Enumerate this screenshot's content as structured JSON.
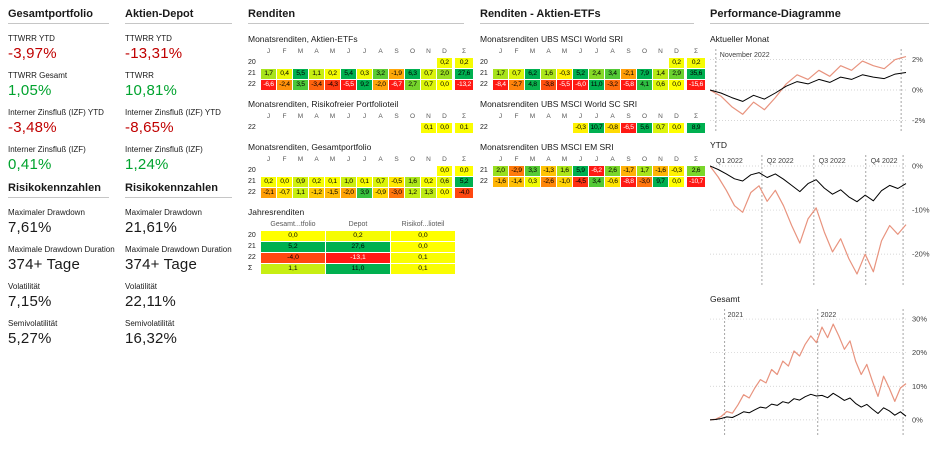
{
  "colors": {
    "negative_value": "#c00000",
    "positive_value": "#00a32e",
    "heat_green": "#00b050",
    "heat_yellow": "#ffff00",
    "heat_red": "#ff1914",
    "depot_series": "#e8937e",
    "portfolio_series": "#000000"
  },
  "panels": {
    "gesamtportfolio": {
      "title": "Gesamtportfolio",
      "metrics": [
        {
          "label": "TTWRR YTD",
          "value": "-3,97%",
          "tone": "negative"
        },
        {
          "label": "TTWRR Gesamt",
          "value": "1,05%",
          "tone": "positive"
        },
        {
          "label": "Interner Zinsfluß (IZF) YTD",
          "value": "-3,48%",
          "tone": "negative"
        },
        {
          "label": "Interner Zinsfluß (IZF)",
          "value": "0,41%",
          "tone": "positive"
        }
      ],
      "risk": {
        "title": "Risikokennzahlen",
        "metrics": [
          {
            "label": "Maximaler Drawdown",
            "value": "7,61%"
          },
          {
            "label": "Maximale Drawdown Duration",
            "value": "374+ Tage"
          },
          {
            "label": "Volatilität",
            "value": "7,15%"
          },
          {
            "label": "Semivolatilität",
            "value": "5,27%"
          }
        ]
      }
    },
    "aktien_depot": {
      "title": "Aktien-Depot",
      "metrics": [
        {
          "label": "TTWRR YTD",
          "value": "-13,31%",
          "tone": "negative"
        },
        {
          "label": "TTWRR",
          "value": "10,81%",
          "tone": "positive"
        },
        {
          "label": "Interner Zinsfluß (IZF) YTD",
          "value": "-8,65%",
          "tone": "negative"
        },
        {
          "label": "Interner Zinsfluß (IZF)",
          "value": "1,24%",
          "tone": "positive"
        }
      ],
      "risk": {
        "title": "Risikokennzahlen",
        "metrics": [
          {
            "label": "Maximaler Drawdown",
            "value": "21,61%"
          },
          {
            "label": "Maximale Drawdown Duration",
            "value": "374+ Tage"
          },
          {
            "label": "Volatilität",
            "value": "22,11%"
          },
          {
            "label": "Semivolatilität",
            "value": "16,32%"
          }
        ]
      }
    },
    "renditen": {
      "title": "Renditen",
      "month_headers": [
        "J",
        "F",
        "M",
        "A",
        "M",
        "J",
        "J",
        "A",
        "S",
        "O",
        "N",
        "D",
        "Σ"
      ],
      "tables": [
        {
          "title": "Monatsrenditen, Aktien-ETFs",
          "rows": [
            {
              "year": "20",
              "months": [
                null,
                null,
                null,
                null,
                null,
                null,
                null,
                null,
                null,
                null,
                null,
                0.2
              ],
              "sum": 0.2
            },
            {
              "year": "21",
              "months": [
                1.7,
                0.4,
                5.5,
                1.1,
                0.2,
                5.4,
                0.3,
                3.2,
                -1.9,
                6.3,
                0.7,
                2.0
              ],
              "sum": 27.6
            },
            {
              "year": "22",
              "months": [
                -6.6,
                -2.4,
                3.5,
                -3.4,
                -4.3,
                -5.5,
                9.2,
                -2.0,
                -6.7,
                2.7,
                0.7,
                0.0
              ],
              "sum": -13.2
            }
          ]
        },
        {
          "title": "Monatsrenditen, Risikofreier Portfolioteil",
          "rows": [
            {
              "year": "22",
              "months": [
                null,
                null,
                null,
                null,
                null,
                null,
                null,
                null,
                null,
                null,
                0.1,
                0.0
              ],
              "sum": 0.1
            }
          ]
        },
        {
          "title": "Monatsrenditen, Gesamtportfolio",
          "rows": [
            {
              "year": "20",
              "months": [
                null,
                null,
                null,
                null,
                null,
                null,
                null,
                null,
                null,
                null,
                null,
                0.0
              ],
              "sum": 0.0
            },
            {
              "year": "21",
              "months": [
                0.2,
                0.0,
                0.9,
                0.2,
                0.1,
                1.0,
                0.1,
                0.7,
                -0.5,
                1.6,
                0.2,
                0.6
              ],
              "sum": 5.2
            },
            {
              "year": "22",
              "months": [
                -2.1,
                -0.7,
                1.1,
                -1.2,
                -1.5,
                -2.0,
                3.9,
                -0.9,
                -3.0,
                1.2,
                1.3,
                0.0
              ],
              "sum": -4.0
            }
          ]
        }
      ],
      "jahresrenditen": {
        "title": "Jahresrenditen",
        "columns": [
          "Gesamt...tfolio",
          "Depot",
          "Risikof...lioteil"
        ],
        "rows": [
          {
            "year": "20",
            "values": [
              0.0,
              0.2,
              0.0
            ]
          },
          {
            "year": "21",
            "values": [
              5.2,
              27.6,
              0.0
            ]
          },
          {
            "year": "22",
            "values": [
              -4.0,
              -13.1,
              0.1
            ]
          },
          {
            "year": "Σ",
            "values": [
              1.1,
              11.0,
              0.1
            ]
          }
        ]
      }
    },
    "renditen_etfs": {
      "title": "Renditen - Aktien-ETFs",
      "tables": [
        {
          "title": "Monatsrenditen UBS MSCI World SRI",
          "rows": [
            {
              "year": "20",
              "months": [
                null,
                null,
                null,
                null,
                null,
                null,
                null,
                null,
                null,
                null,
                null,
                0.2
              ],
              "sum": 0.2
            },
            {
              "year": "21",
              "months": [
                1.7,
                0.7,
                6.2,
                1.6,
                -0.3,
                5.2,
                2.4,
                3.4,
                -2.1,
                7.9,
                1.4,
                2.9
              ],
              "sum": 35.6
            },
            {
              "year": "22",
              "months": [
                -8.4,
                -2.7,
                4.8,
                -3.8,
                -5.5,
                -6.0,
                11.0,
                -3.2,
                -5.8,
                4.1,
                0.6,
                0.0
              ],
              "sum": -15.6
            }
          ]
        },
        {
          "title": "Monatsrenditen UBS MSCI World SC SRI",
          "rows": [
            {
              "year": "22",
              "months": [
                null,
                null,
                null,
                null,
                null,
                -0.3,
                10.7,
                -0.8,
                -6.5,
                5.6,
                0.7,
                0.0
              ],
              "sum": 8.9
            }
          ]
        },
        {
          "title": "Monatsrenditen UBS MSCI EM SRI",
          "rows": [
            {
              "year": "21",
              "months": [
                2.0,
                -2.9,
                3.3,
                -1.3,
                1.6,
                5.9,
                -6.2,
                2.6,
                -1.7,
                1.7,
                -1.6,
                -0.3
              ],
              "sum": 2.6
            },
            {
              "year": "22",
              "months": [
                -1.6,
                -1.4,
                0.3,
                -2.6,
                -1.0,
                -4.5,
                3.4,
                -0.6,
                -8.8,
                -3.0,
                9.7,
                0.0
              ],
              "sum": -10.7
            }
          ]
        }
      ]
    },
    "performance": {
      "title": "Performance-Diagramme"
    }
  },
  "chart_data": [
    {
      "type": "line",
      "title": "Aktueller Monat",
      "y_ticks": [
        2,
        0,
        -2
      ],
      "y_range": [
        -2.7,
        2.7
      ],
      "x_lines": [
        0.03,
        0.975
      ],
      "x_labels": [
        {
          "pos": 0.05,
          "text": "November 2022"
        }
      ],
      "series": [
        {
          "name": "Aktien-Depot",
          "color": "#e8937e",
          "values": [
            0,
            -0.4,
            -1.1,
            -1.6,
            -0.8,
            -1.3,
            -0.5,
            0.4,
            1.0,
            0.7,
            1.3,
            0.9,
            1.6,
            1.3,
            1.9,
            1.6,
            1.4,
            2.0,
            2.2
          ]
        },
        {
          "name": "Gesamtportfolio",
          "color": "#000000",
          "values": [
            0,
            -0.2,
            -0.5,
            -0.75,
            -0.35,
            -0.6,
            -0.2,
            0.25,
            0.55,
            0.4,
            0.7,
            0.5,
            0.85,
            0.7,
            1.0,
            0.85,
            0.75,
            1.05,
            1.15
          ]
        }
      ]
    },
    {
      "type": "line",
      "title": "YTD",
      "y_ticks": [
        0,
        -10,
        -20
      ],
      "y_range": [
        -27,
        2.5
      ],
      "x_lines": [
        0.265,
        0.53,
        0.795,
        0.985
      ],
      "x_labels": [
        {
          "pos": 0.03,
          "text": "Q1 2022"
        },
        {
          "pos": 0.29,
          "text": "Q2 2022"
        },
        {
          "pos": 0.555,
          "text": "Q3 2022"
        },
        {
          "pos": 0.82,
          "text": "Q4 2022"
        }
      ],
      "series": [
        {
          "name": "Aktien-Depot",
          "color": "#e8937e",
          "values": [
            0,
            -2.5,
            -5.5,
            -9,
            -10.5,
            -6,
            -4.5,
            -8,
            -5.5,
            -9,
            -13.5,
            -17.5,
            -12,
            -9.5,
            -15,
            -19.5,
            -16.5,
            -21,
            -24.5,
            -20,
            -24,
            -17,
            -13.5,
            -15.5,
            -13.3
          ]
        },
        {
          "name": "Gesamtportfolio",
          "color": "#000000",
          "values": [
            0,
            -0.8,
            -1.8,
            -2.9,
            -3.4,
            -2,
            -1.5,
            -2.6,
            -1.8,
            -3,
            -4.4,
            -5.8,
            -4,
            -3.1,
            -5,
            -6.4,
            -5.4,
            -7,
            -8.1,
            -6.6,
            -7.9,
            -5.6,
            -4.4,
            -5.1,
            -4
          ]
        }
      ]
    },
    {
      "type": "line",
      "title": "Gesamt",
      "y_ticks": [
        30,
        20,
        10,
        0
      ],
      "y_range": [
        -4.5,
        33
      ],
      "x_lines": [
        0.075,
        0.55,
        0.985
      ],
      "x_labels": [
        {
          "pos": 0.09,
          "text": "2021"
        },
        {
          "pos": 0.565,
          "text": "2022"
        }
      ],
      "series": [
        {
          "name": "Aktien-Depot",
          "color": "#e8937e",
          "values": [
            0,
            0.2,
            1,
            2.5,
            2,
            4.5,
            7.5,
            6.5,
            9.5,
            12,
            11,
            15,
            13.5,
            17.5,
            16,
            20.5,
            19,
            22.5,
            25,
            23,
            27.6,
            24.5,
            28.5,
            25,
            21,
            23.5,
            17.5,
            13.5,
            16.5,
            11.5,
            7,
            13,
            9.5,
            5.5,
            9.5,
            10.8
          ]
        },
        {
          "name": "Gesamtportfolio",
          "color": "#000000",
          "values": [
            0,
            0.1,
            0.4,
            0.9,
            0.7,
            1.5,
            2.4,
            2.1,
            3,
            3.8,
            3.5,
            4.7,
            4.3,
            5.4,
            5,
            6.3,
            5.9,
            6.9,
            7.6,
            7.1,
            7.3,
            6.6,
            7.9,
            6.9,
            5.8,
            6.5,
            4.9,
            3.8,
            4.6,
            3.2,
            1.9,
            3.6,
            2.7,
            1.4,
            2.4,
            1.1
          ]
        }
      ]
    }
  ]
}
